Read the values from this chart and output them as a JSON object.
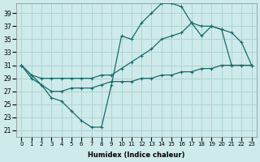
{
  "xlabel": "Humidex (Indice chaleur)",
  "x_ticks": [
    0,
    1,
    2,
    3,
    4,
    5,
    6,
    7,
    8,
    9,
    10,
    11,
    12,
    13,
    14,
    15,
    16,
    17,
    18,
    19,
    20,
    21,
    22,
    23
  ],
  "y_ticks": [
    21,
    23,
    25,
    27,
    29,
    31,
    33,
    35,
    37,
    39
  ],
  "xlim": [
    -0.5,
    23.5
  ],
  "ylim": [
    20.0,
    40.5
  ],
  "bg_color": "#ceeaea",
  "grid_color": "#add4d4",
  "line_color": "#1a6b6b",
  "line1_x": [
    0,
    1,
    2,
    3,
    4,
    5,
    6,
    7,
    8,
    9,
    10,
    11,
    12,
    13,
    14,
    15,
    16,
    17,
    18,
    19,
    20,
    21,
    22,
    23
  ],
  "line1_y": [
    31.0,
    29.0,
    28.0,
    26.0,
    25.5,
    24.0,
    22.5,
    21.5,
    21.5,
    28.0,
    35.5,
    35.0,
    37.5,
    39.0,
    40.5,
    40.5,
    40.0,
    37.5,
    35.5,
    37.0,
    36.5,
    36.0,
    34.5,
    31.0
  ],
  "line2_x": [
    0,
    1,
    2,
    3,
    4,
    5,
    6,
    7,
    8,
    9,
    10,
    11,
    12,
    13,
    14,
    15,
    16,
    17,
    18,
    19,
    20,
    21,
    22,
    23
  ],
  "line2_y": [
    31.0,
    29.5,
    29.0,
    29.0,
    29.0,
    29.0,
    29.0,
    29.0,
    29.5,
    29.5,
    30.5,
    31.5,
    32.5,
    33.5,
    35.0,
    35.5,
    36.0,
    37.5,
    37.0,
    37.0,
    36.5,
    31.0,
    31.0,
    31.0
  ],
  "line3_x": [
    0,
    1,
    2,
    3,
    4,
    5,
    6,
    7,
    8,
    9,
    10,
    11,
    12,
    13,
    14,
    15,
    16,
    17,
    18,
    19,
    20,
    21,
    22,
    23
  ],
  "line3_y": [
    31.0,
    29.5,
    28.0,
    27.0,
    27.0,
    27.5,
    27.5,
    27.5,
    28.0,
    28.5,
    28.5,
    28.5,
    29.0,
    29.0,
    29.5,
    29.5,
    30.0,
    30.0,
    30.5,
    30.5,
    31.0,
    31.0,
    31.0,
    31.0
  ]
}
